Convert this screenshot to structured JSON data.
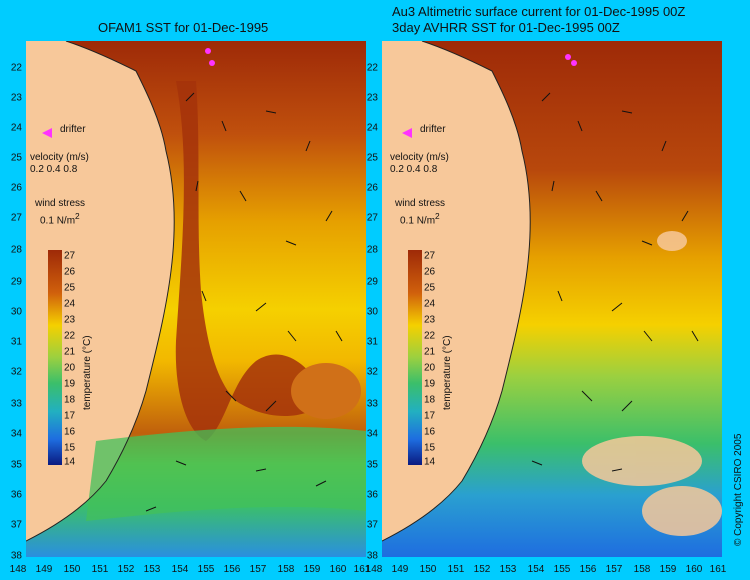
{
  "titles": {
    "left": "OFAM1 SST for 01-Dec-1995",
    "right_line1": "Au3 Altimetric surface current for 01-Dec-1995 00Z",
    "right_line2": "3day AVHRR SST for 01-Dec-1995 00Z"
  },
  "axes": {
    "lat_ticks": [
      "22",
      "23",
      "24",
      "25",
      "26",
      "27",
      "28",
      "29",
      "30",
      "31",
      "32",
      "33",
      "34",
      "35",
      "36",
      "37",
      "38"
    ],
    "lon_ticks": [
      "148",
      "149",
      "150",
      "151",
      "152",
      "153",
      "154",
      "155",
      "156",
      "157",
      "158",
      "159",
      "160",
      "161"
    ]
  },
  "legend": {
    "drifter": "drifter",
    "velocity_title": "velocity (m/s)",
    "velocity_values": "0.2 0.4 0.8",
    "wind_title": "wind stress",
    "wind_value": "0.1",
    "wind_unit": "N/m",
    "wind_exp": "2",
    "colorbar_label": "temperature (°C)",
    "colorbar_ticks": [
      "27",
      "26",
      "25",
      "24",
      "23",
      "22",
      "21",
      "20",
      "19",
      "18",
      "17",
      "16",
      "15",
      "14"
    ]
  },
  "colors": {
    "land": "#f7c89a",
    "ocean_bg": "#00ccff",
    "warm": "#a4320a",
    "mid": "#f2c400",
    "cool": "#2fb85a",
    "cold": "#1e6de0",
    "drifter": "#ff33ff"
  },
  "copyright": "© Copyright CSIRO 2005"
}
